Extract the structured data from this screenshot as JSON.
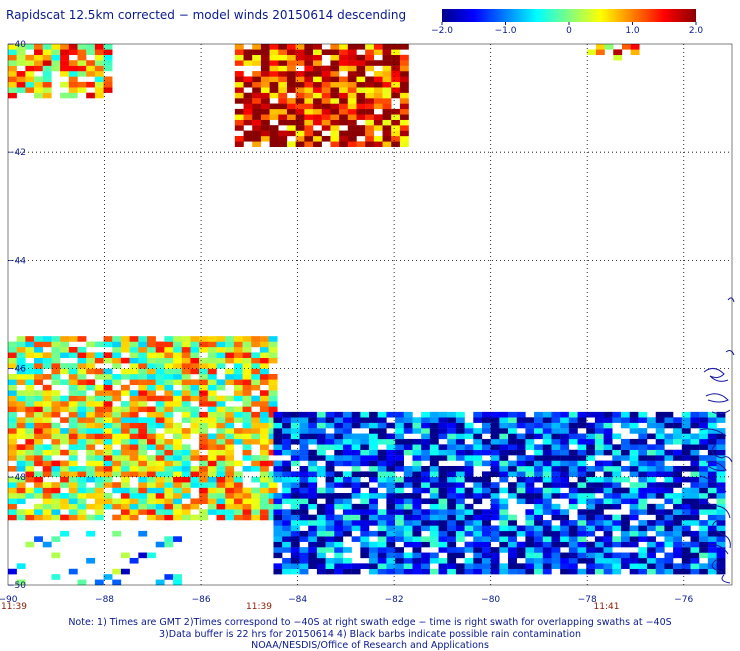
{
  "title": "Rapidscat 12.5km corrected − model winds 20150614 descending",
  "colorbar": {
    "vmin": -2.0,
    "vmax": 2.0,
    "tick_labels": [
      "−2.0",
      "−1.0",
      "0",
      "1.0",
      "2.0"
    ],
    "tick_values": [
      -2.0,
      -1.0,
      0,
      1.0,
      2.0
    ],
    "colormap": [
      "#00008b",
      "#0000ff",
      "#0080ff",
      "#00ffff",
      "#80ff80",
      "#ffff00",
      "#ff8000",
      "#ff0000",
      "#8b0000"
    ]
  },
  "chart_data": {
    "type": "heatmap",
    "title": "Rapidscat 12.5km corrected − model winds 20150614 descending",
    "xlabel": "",
    "ylabel": "",
    "xlim": [
      -90,
      -75
    ],
    "ylim": [
      -50,
      -40
    ],
    "grid": true,
    "x_ticks": [
      -90,
      -88,
      -86,
      -84,
      -82,
      -80,
      -78,
      -76
    ],
    "x_tick_labels": [
      "−90",
      "−88",
      "−86",
      "−84",
      "−82",
      "−80",
      "−78",
      "−76"
    ],
    "y_ticks": [
      -40,
      -42,
      -44,
      -46,
      -48,
      -50
    ],
    "y_tick_labels": [
      "−40",
      "−42",
      "−44",
      "−46",
      "−48",
      "−50"
    ],
    "time_labels": [
      {
        "lon": -90,
        "text": "11:39"
      },
      {
        "lon": -84.8,
        "text": "11:39"
      },
      {
        "lon": -77.6,
        "text": "11:41"
      }
    ],
    "regions": [
      {
        "name": "northwest corner swath",
        "lon": [
          -90,
          -87.9
        ],
        "lat": [
          -41.0,
          -40.0
        ],
        "value_mean": 0.6
      },
      {
        "name": "north-central swath",
        "lon": [
          -85.3,
          -81.8
        ],
        "lat": [
          -41.9,
          -40.0
        ],
        "value_mean": 1.5
      },
      {
        "name": "northeast fragment",
        "lon": [
          -78.0,
          -77.0
        ],
        "lat": [
          -40.3,
          -40.0
        ],
        "value_mean": 0.9
      },
      {
        "name": "main swath west",
        "lon": [
          -90,
          -84.5
        ],
        "lat": [
          -48.8,
          -45.4
        ],
        "value_mean": 0.4
      },
      {
        "name": "main swath east",
        "lon": [
          -84.5,
          -75.3
        ],
        "lat": [
          -49.8,
          -46.8
        ],
        "value_mean": -1.3
      },
      {
        "name": "southwest scattered",
        "lon": [
          -90,
          -86.5
        ],
        "lat": [
          -50.0,
          -49.0
        ],
        "value_mean": -0.8
      }
    ]
  },
  "notes": {
    "line1": "Note: 1) Times are GMT 2)Times correspond to −40S at right swath edge − time is right swath for overlapping swaths at −40S",
    "line2": "3)Data buffer is 22 hrs for 20150614 4) Black barbs indicate possible rain contamination",
    "line3": "NOAA/NESDIS/Office of Research and Applications"
  }
}
